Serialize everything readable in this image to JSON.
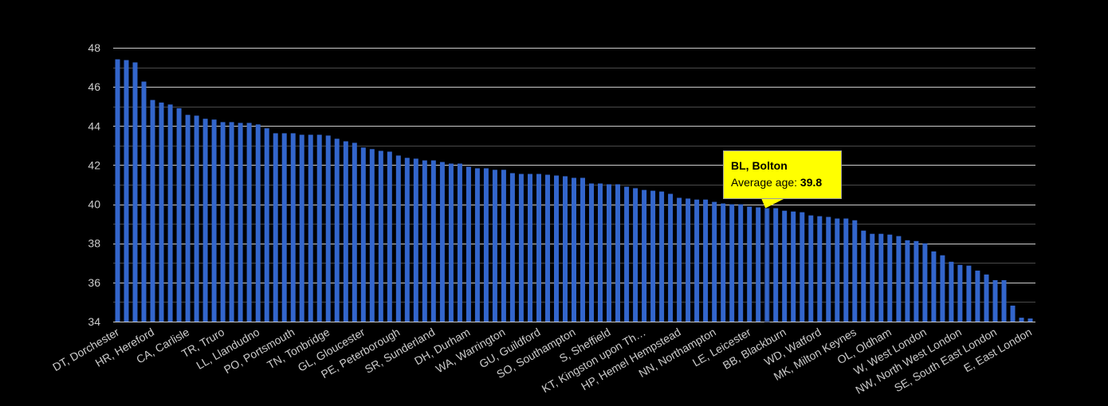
{
  "chart_data": {
    "type": "bar",
    "title": "",
    "xlabel": "",
    "ylabel": "",
    "ylim": [
      34,
      48
    ],
    "yticks": [
      "34",
      "36",
      "38",
      "40",
      "42",
      "44",
      "46",
      "48"
    ],
    "grid": true,
    "legend": "none",
    "bar_color": "#3366cc",
    "label_every": 4,
    "labels_shown": [
      "DT, Dorchester",
      "HR, Hereford",
      "CA, Carlisle",
      "TR, Truro",
      "LL, Llandudno",
      "PO, Portsmouth",
      "TN, Tonbridge",
      "GL, Gloucester",
      "PE, Peterborough",
      "SR, Sunderland",
      "DH, Durham",
      "WA, Warrington",
      "GU, Guildford",
      "SO, Southampton",
      "S, Sheffield",
      "KT, Kingston upon Th…",
      "HP, Hemel Hempstead",
      "NN, Northampton",
      "LE, Leicester",
      "BB, Blackburn",
      "WD, Watford",
      "MK, Milton Keynes",
      "OL, Oldham",
      "W, West London",
      "NW, North West London",
      "SE, South East London",
      "E, East London"
    ],
    "values": [
      47.41,
      47.37,
      47.25,
      46.27,
      45.33,
      45.2,
      45.1,
      44.91,
      44.57,
      44.53,
      44.37,
      44.33,
      44.2,
      44.2,
      44.16,
      44.16,
      44.08,
      43.88,
      43.63,
      43.63,
      43.63,
      43.55,
      43.55,
      43.55,
      43.51,
      43.35,
      43.22,
      43.14,
      42.9,
      42.82,
      42.73,
      42.69,
      42.49,
      42.37,
      42.33,
      42.24,
      42.24,
      42.16,
      42.08,
      42.08,
      41.92,
      41.84,
      41.84,
      41.76,
      41.76,
      41.59,
      41.55,
      41.55,
      41.55,
      41.51,
      41.47,
      41.43,
      41.35,
      41.35,
      41.06,
      41.06,
      41.02,
      41.02,
      40.9,
      40.82,
      40.73,
      40.69,
      40.65,
      40.53,
      40.33,
      40.29,
      40.24,
      40.24,
      40.12,
      40.04,
      40.0,
      40.0,
      39.88,
      39.84,
      39.8,
      39.8,
      39.67,
      39.63,
      39.59,
      39.43,
      39.39,
      39.35,
      39.27,
      39.27,
      39.18,
      38.65,
      38.49,
      38.49,
      38.45,
      38.37,
      38.16,
      38.12,
      38.0,
      37.59,
      37.39,
      37.06,
      36.9,
      36.86,
      36.61,
      36.41,
      36.12,
      36.12,
      34.82,
      34.2,
      34.16
    ],
    "highlight_index": 74,
    "tooltip": {
      "title": "BL, Bolton",
      "label": "Average age: ",
      "value": "39.8"
    }
  }
}
